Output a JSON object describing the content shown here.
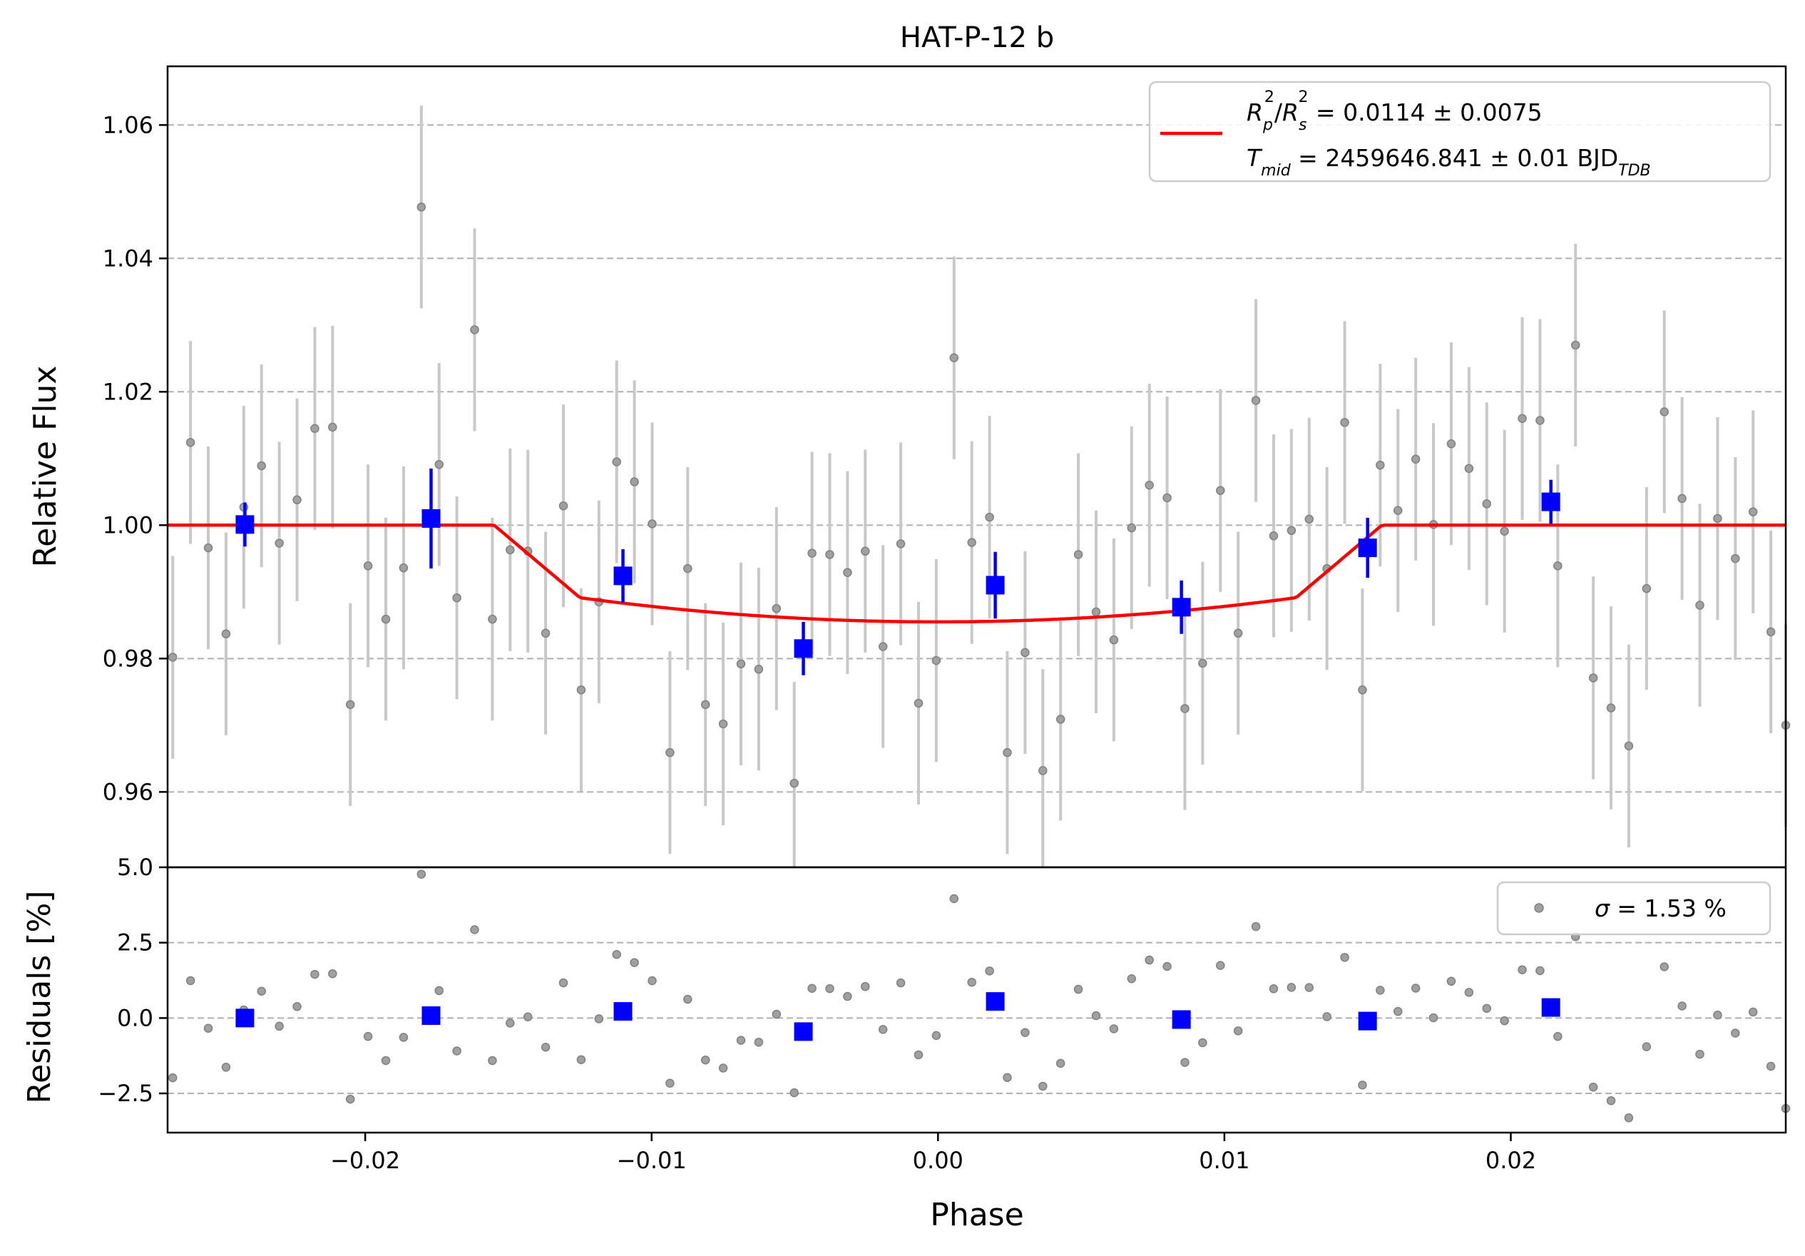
{
  "chart_data": [
    {
      "type": "scatter",
      "title": "HAT-P-12 b",
      "xlabel": "",
      "ylabel": "Relative Flux",
      "xlim": [
        -0.0269,
        0.0296
      ],
      "ylim": [
        0.9487,
        1.0688
      ],
      "yticks": [
        0.96,
        0.98,
        1.0,
        1.02,
        1.04,
        1.06
      ],
      "yticklabels": [
        "0.96",
        "0.98",
        "1.00",
        "1.02",
        "1.04",
        "1.06"
      ],
      "grid": "y-dashed",
      "legend": {
        "placement": "top-right",
        "model_line": {
          "color": "#ff0000",
          "rp_label": "R",
          "rp_sub": "p",
          "rp_sup": "2",
          "rs_label": "R",
          "rs_sub": "s",
          "rs_sup": "2",
          "rp_value": " = 0.0114 ± 0.0075",
          "tmid_label": "T",
          "tmid_sub": "mid",
          "tmid_value": " = 2459646.841 ± 0.01 BJD",
          "tmid_unit_sub": "TDB"
        }
      },
      "colors": {
        "data": "#808080",
        "data_err": "#c8c8c8",
        "binned": "#0000ff",
        "model": "#ff0000",
        "grid": "#b0b0b0"
      },
      "data_points": {
        "x": [
          -0.02694,
          -0.02672,
          -0.0261,
          -0.02548,
          -0.02486,
          -0.02424,
          -0.02362,
          -0.023,
          -0.02238,
          -0.02176,
          -0.02114,
          -0.02052,
          -0.0199,
          -0.01928,
          -0.01866,
          -0.01804,
          -0.01742,
          -0.0168,
          -0.01618,
          -0.01556,
          -0.01494,
          -0.01432,
          -0.0137,
          -0.01308,
          -0.01246,
          -0.01184,
          -0.01122,
          -0.0106,
          -0.00998,
          -0.00936,
          -0.00874,
          -0.00812,
          -0.0075,
          -0.00688,
          -0.00626,
          -0.00564,
          -0.00502,
          -0.0044,
          -0.00378,
          -0.00316,
          -0.00254,
          -0.00192,
          -0.0013,
          -0.00068,
          -6e-05,
          0.00056,
          0.00118,
          0.0018,
          0.00242,
          0.00304,
          0.00366,
          0.00428,
          0.0049,
          0.00552,
          0.00614,
          0.00676,
          0.00738,
          0.008,
          0.00862,
          0.00924,
          0.00986,
          0.01048,
          0.0111,
          0.01172,
          0.01234,
          0.01296,
          0.01358,
          0.0142,
          0.01482,
          0.01544,
          0.01606,
          0.01668,
          0.0173,
          0.01792,
          0.01854,
          0.01916,
          0.01978,
          0.0204,
          0.02102,
          0.02164,
          0.02226,
          0.02288,
          0.0235,
          0.02412,
          0.02474,
          0.02536,
          0.02598,
          0.0266,
          0.02722,
          0.02784,
          0.02846,
          0.02908,
          0.0296
        ],
        "y": [
          0.9875,
          0.9802,
          1.0124,
          0.9966,
          0.9837,
          1.0027,
          1.0089,
          0.9973,
          1.0038,
          1.0145,
          1.0147,
          0.9731,
          0.9939,
          0.9859,
          0.9936,
          1.0477,
          1.0091,
          0.9891,
          1.0293,
          0.9859,
          0.9963,
          0.9961,
          0.9838,
          1.0029,
          0.9753,
          0.9885,
          1.0095,
          1.0065,
          1.0002,
          0.9659,
          0.9935,
          0.9731,
          0.9702,
          0.9792,
          0.9784,
          0.9875,
          0.9613,
          0.9958,
          0.9956,
          0.9929,
          0.9961,
          0.9818,
          0.9972,
          0.9733,
          0.9797,
          1.0251,
          0.9974,
          1.0012,
          0.9659,
          0.9809,
          0.9632,
          0.9709,
          0.9956,
          0.987,
          0.9828,
          0.9996,
          1.006,
          1.0041,
          0.9725,
          0.9793,
          1.0052,
          0.9838,
          1.0187,
          0.9984,
          0.9992,
          1.0009,
          0.9935,
          1.0154,
          0.9753,
          1.009,
          1.0022,
          1.0099,
          1.0001,
          1.0122,
          1.0085,
          1.0032,
          0.9991,
          1.016,
          1.0157,
          0.9939,
          1.027,
          0.9771,
          0.9726,
          0.9669,
          0.9905,
          1.017,
          1.004,
          0.988,
          1.001,
          0.995,
          1.002,
          0.984,
          0.97
        ],
        "yerr": 0.0152
      },
      "binned_points": {
        "x": [
          -0.0242,
          -0.0177,
          -0.011,
          -0.0047,
          0.002,
          0.0085,
          0.015,
          0.0214
        ],
        "y": [
          1.0001,
          1.001,
          0.9924,
          0.9815,
          0.991,
          0.9877,
          0.9966,
          1.0035
        ],
        "yerr": [
          0.0033,
          0.0075,
          0.004,
          0.004,
          0.005,
          0.004,
          0.0045,
          0.0033
        ]
      },
      "model": {
        "rp_rs2": 0.0114,
        "baseline": 1.0,
        "depth_center": 0.0145,
        "t14_half": 0.0155,
        "ingress": 0.003
      }
    },
    {
      "type": "scatter",
      "title": "",
      "xlabel": "Phase",
      "ylabel": "Residuals [%]",
      "xlim": [
        -0.0269,
        0.0296
      ],
      "ylim": [
        -3.8,
        5.0
      ],
      "xticks": [
        -0.02,
        -0.01,
        0.0,
        0.01,
        0.02
      ],
      "xticklabels": [
        "−0.02",
        "−0.01",
        "0.00",
        "0.01",
        "0.02"
      ],
      "yticks": [
        -2.5,
        0.0,
        2.5,
        5.0
      ],
      "yticklabels": [
        "−2.5",
        "0.0",
        "2.5",
        "5.0"
      ],
      "grid": "y-dashed",
      "legend": {
        "placement": "top-right",
        "sigma_symbol": "σ",
        "sigma_text": " = 1.53 %"
      },
      "binned_points": {
        "x": [
          -0.0242,
          -0.0177,
          -0.011,
          -0.0047,
          0.002,
          0.0085,
          0.015,
          0.0214
        ],
        "y": [
          0.0,
          0.08,
          0.22,
          -0.45,
          0.55,
          -0.05,
          -0.1,
          0.35
        ]
      }
    }
  ]
}
